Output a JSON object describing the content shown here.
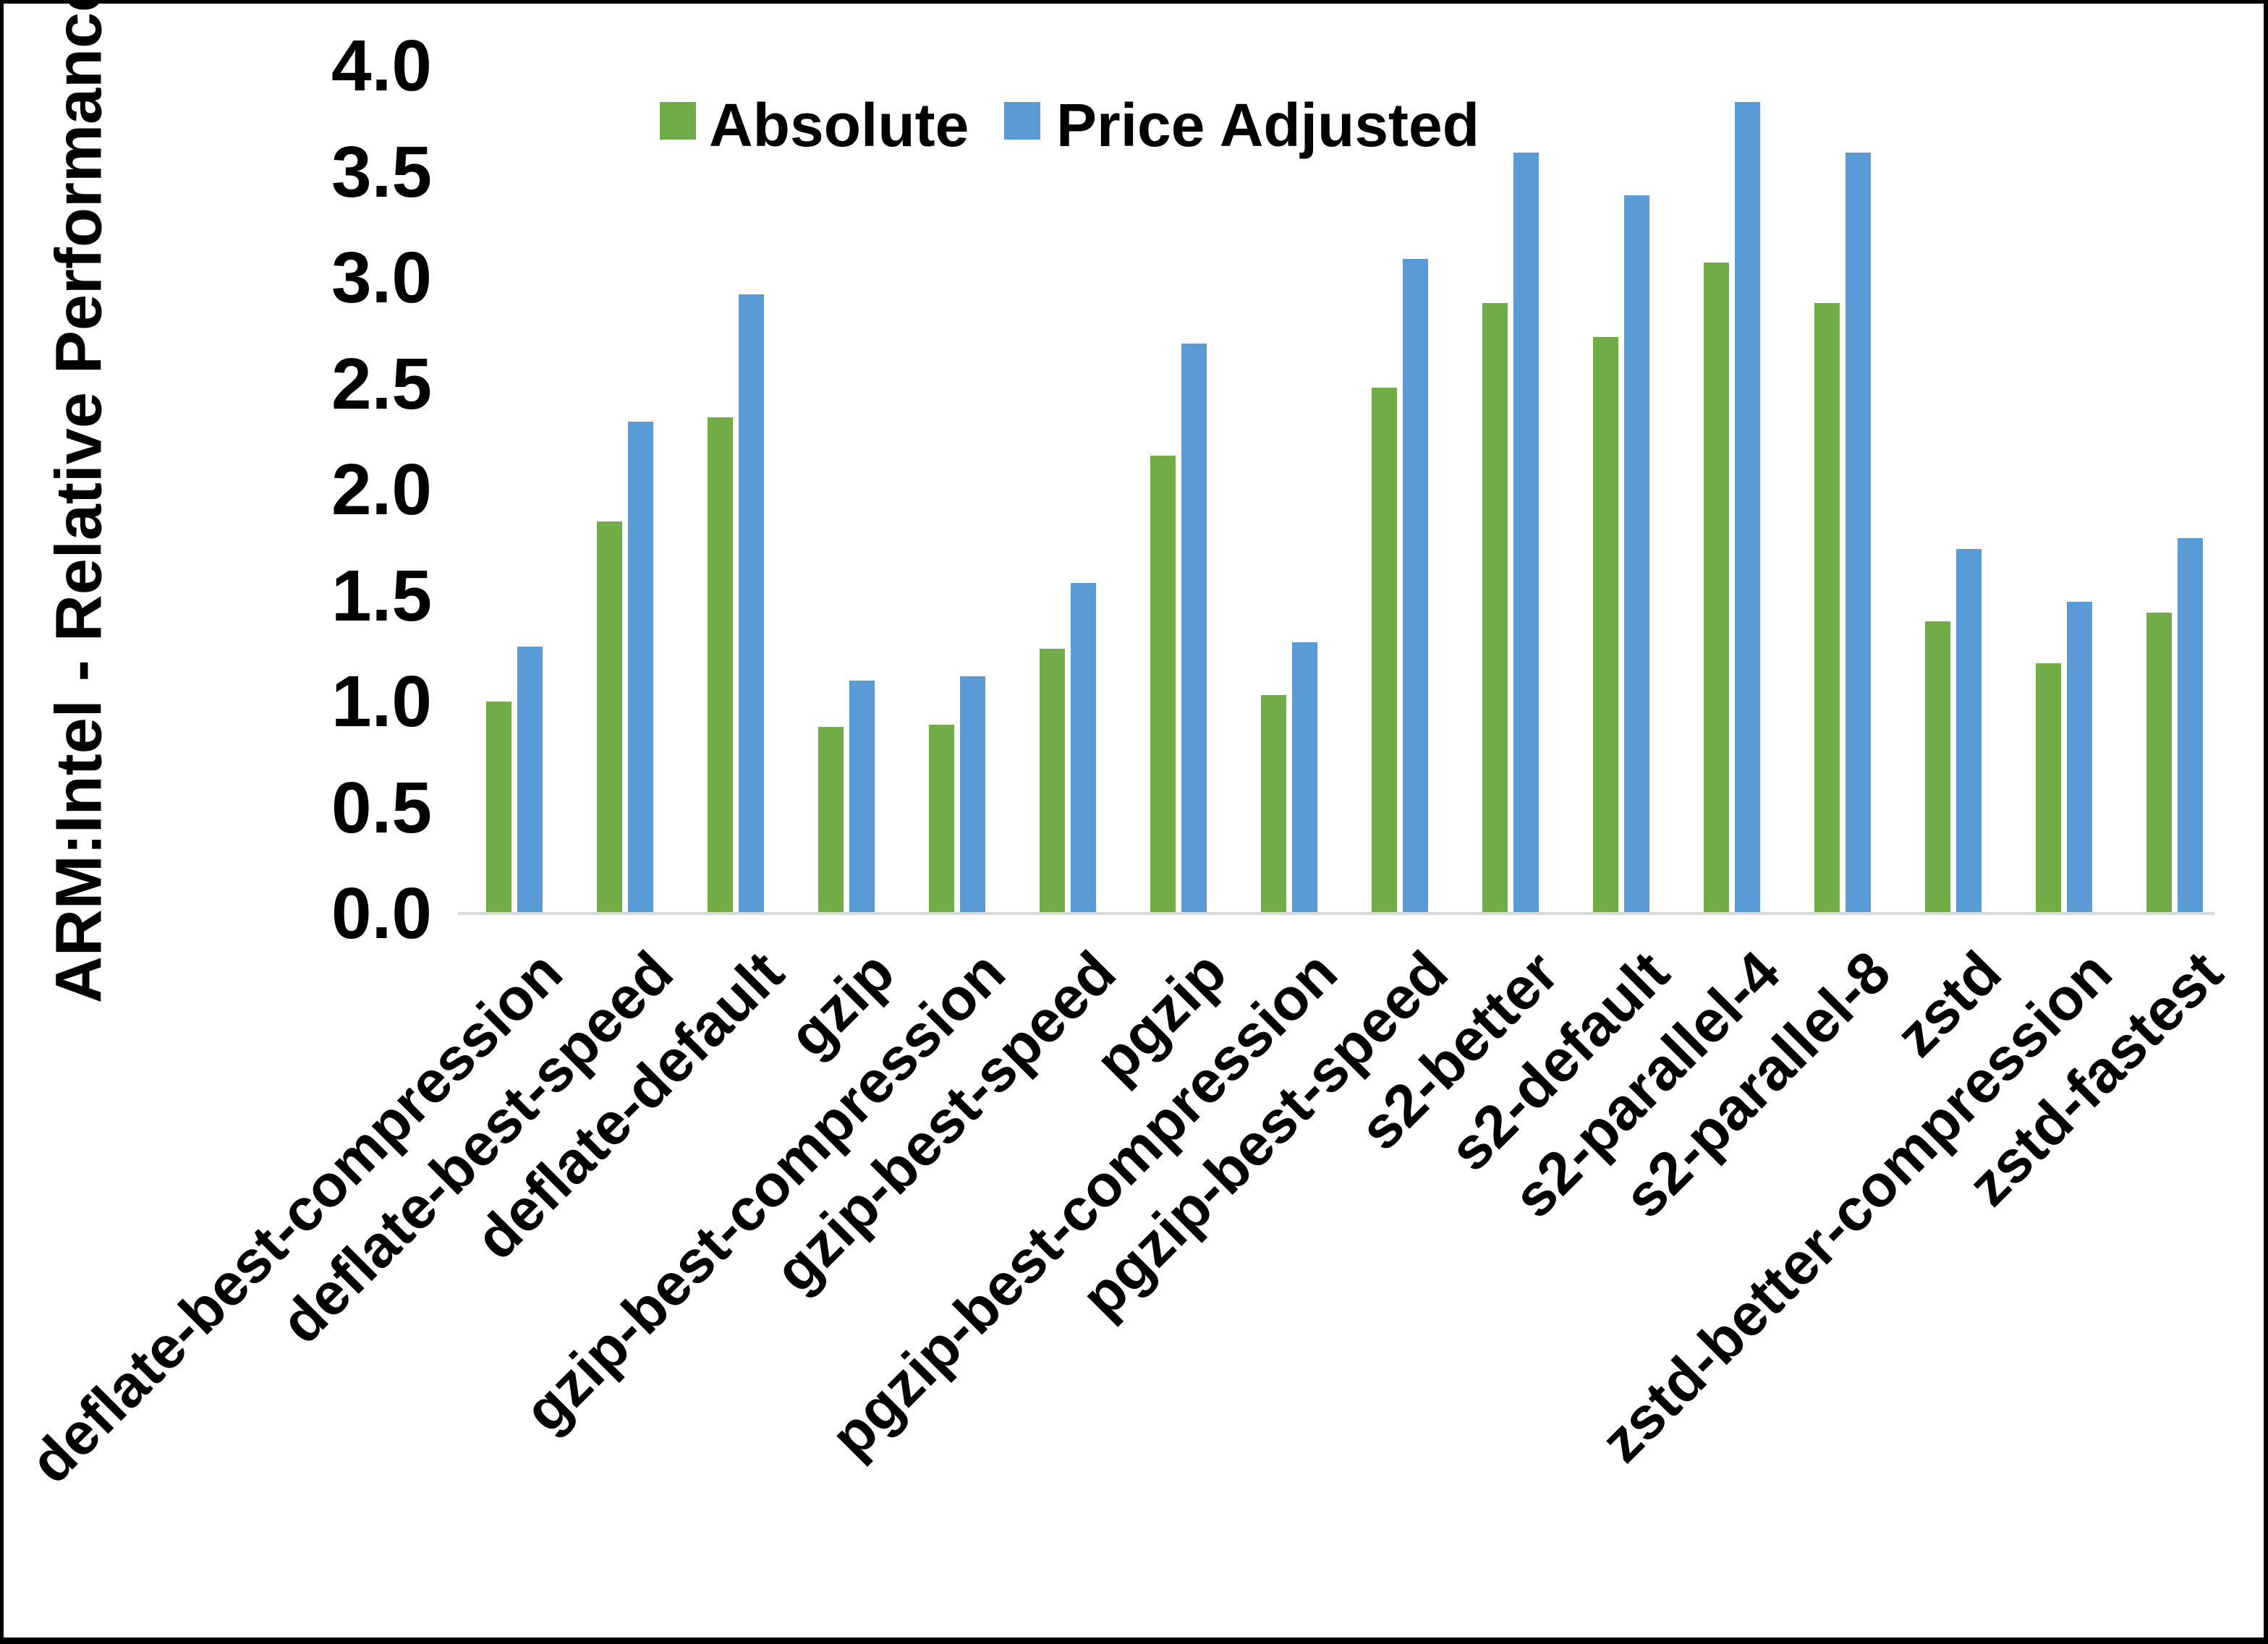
{
  "chart_data": {
    "type": "bar",
    "title": "",
    "ylabel": "ARM:Intel - Relative Performance",
    "xlabel": "",
    "ylim": [
      0.0,
      4.0
    ],
    "y_tick_labels": [
      "0.0",
      "0.5",
      "1.0",
      "1.5",
      "2.0",
      "2.5",
      "3.0",
      "3.5",
      "4.0"
    ],
    "grid": "off",
    "legend_position": "top",
    "categories": [
      "deflate-best-compression",
      "deflate-best-speed",
      "deflate-default",
      "gzip",
      "gzip-best-compression",
      "gzip-best-speed",
      "pgzip",
      "pgzip-best-compression",
      "pgzip-best-speed",
      "s2-better",
      "s2-default",
      "s2-parallel-4",
      "s2-parallel-8",
      "zstd",
      "zstd-better-compression",
      "zstd-fastest"
    ],
    "series": [
      {
        "name": "Absolute",
        "color": "#70AD47",
        "values": [
          1.0,
          1.85,
          2.34,
          0.88,
          0.89,
          1.25,
          2.16,
          1.03,
          2.48,
          2.88,
          2.72,
          3.07,
          2.88,
          1.38,
          1.18,
          1.42
        ]
      },
      {
        "name": "Price Adjusted",
        "color": "#5B9BD5",
        "values": [
          1.26,
          2.32,
          2.92,
          1.1,
          1.12,
          1.56,
          2.69,
          1.28,
          3.09,
          3.59,
          3.39,
          3.83,
          3.59,
          1.72,
          1.47,
          1.77
        ]
      }
    ],
    "axis_line_color": "#D9D9D9"
  }
}
